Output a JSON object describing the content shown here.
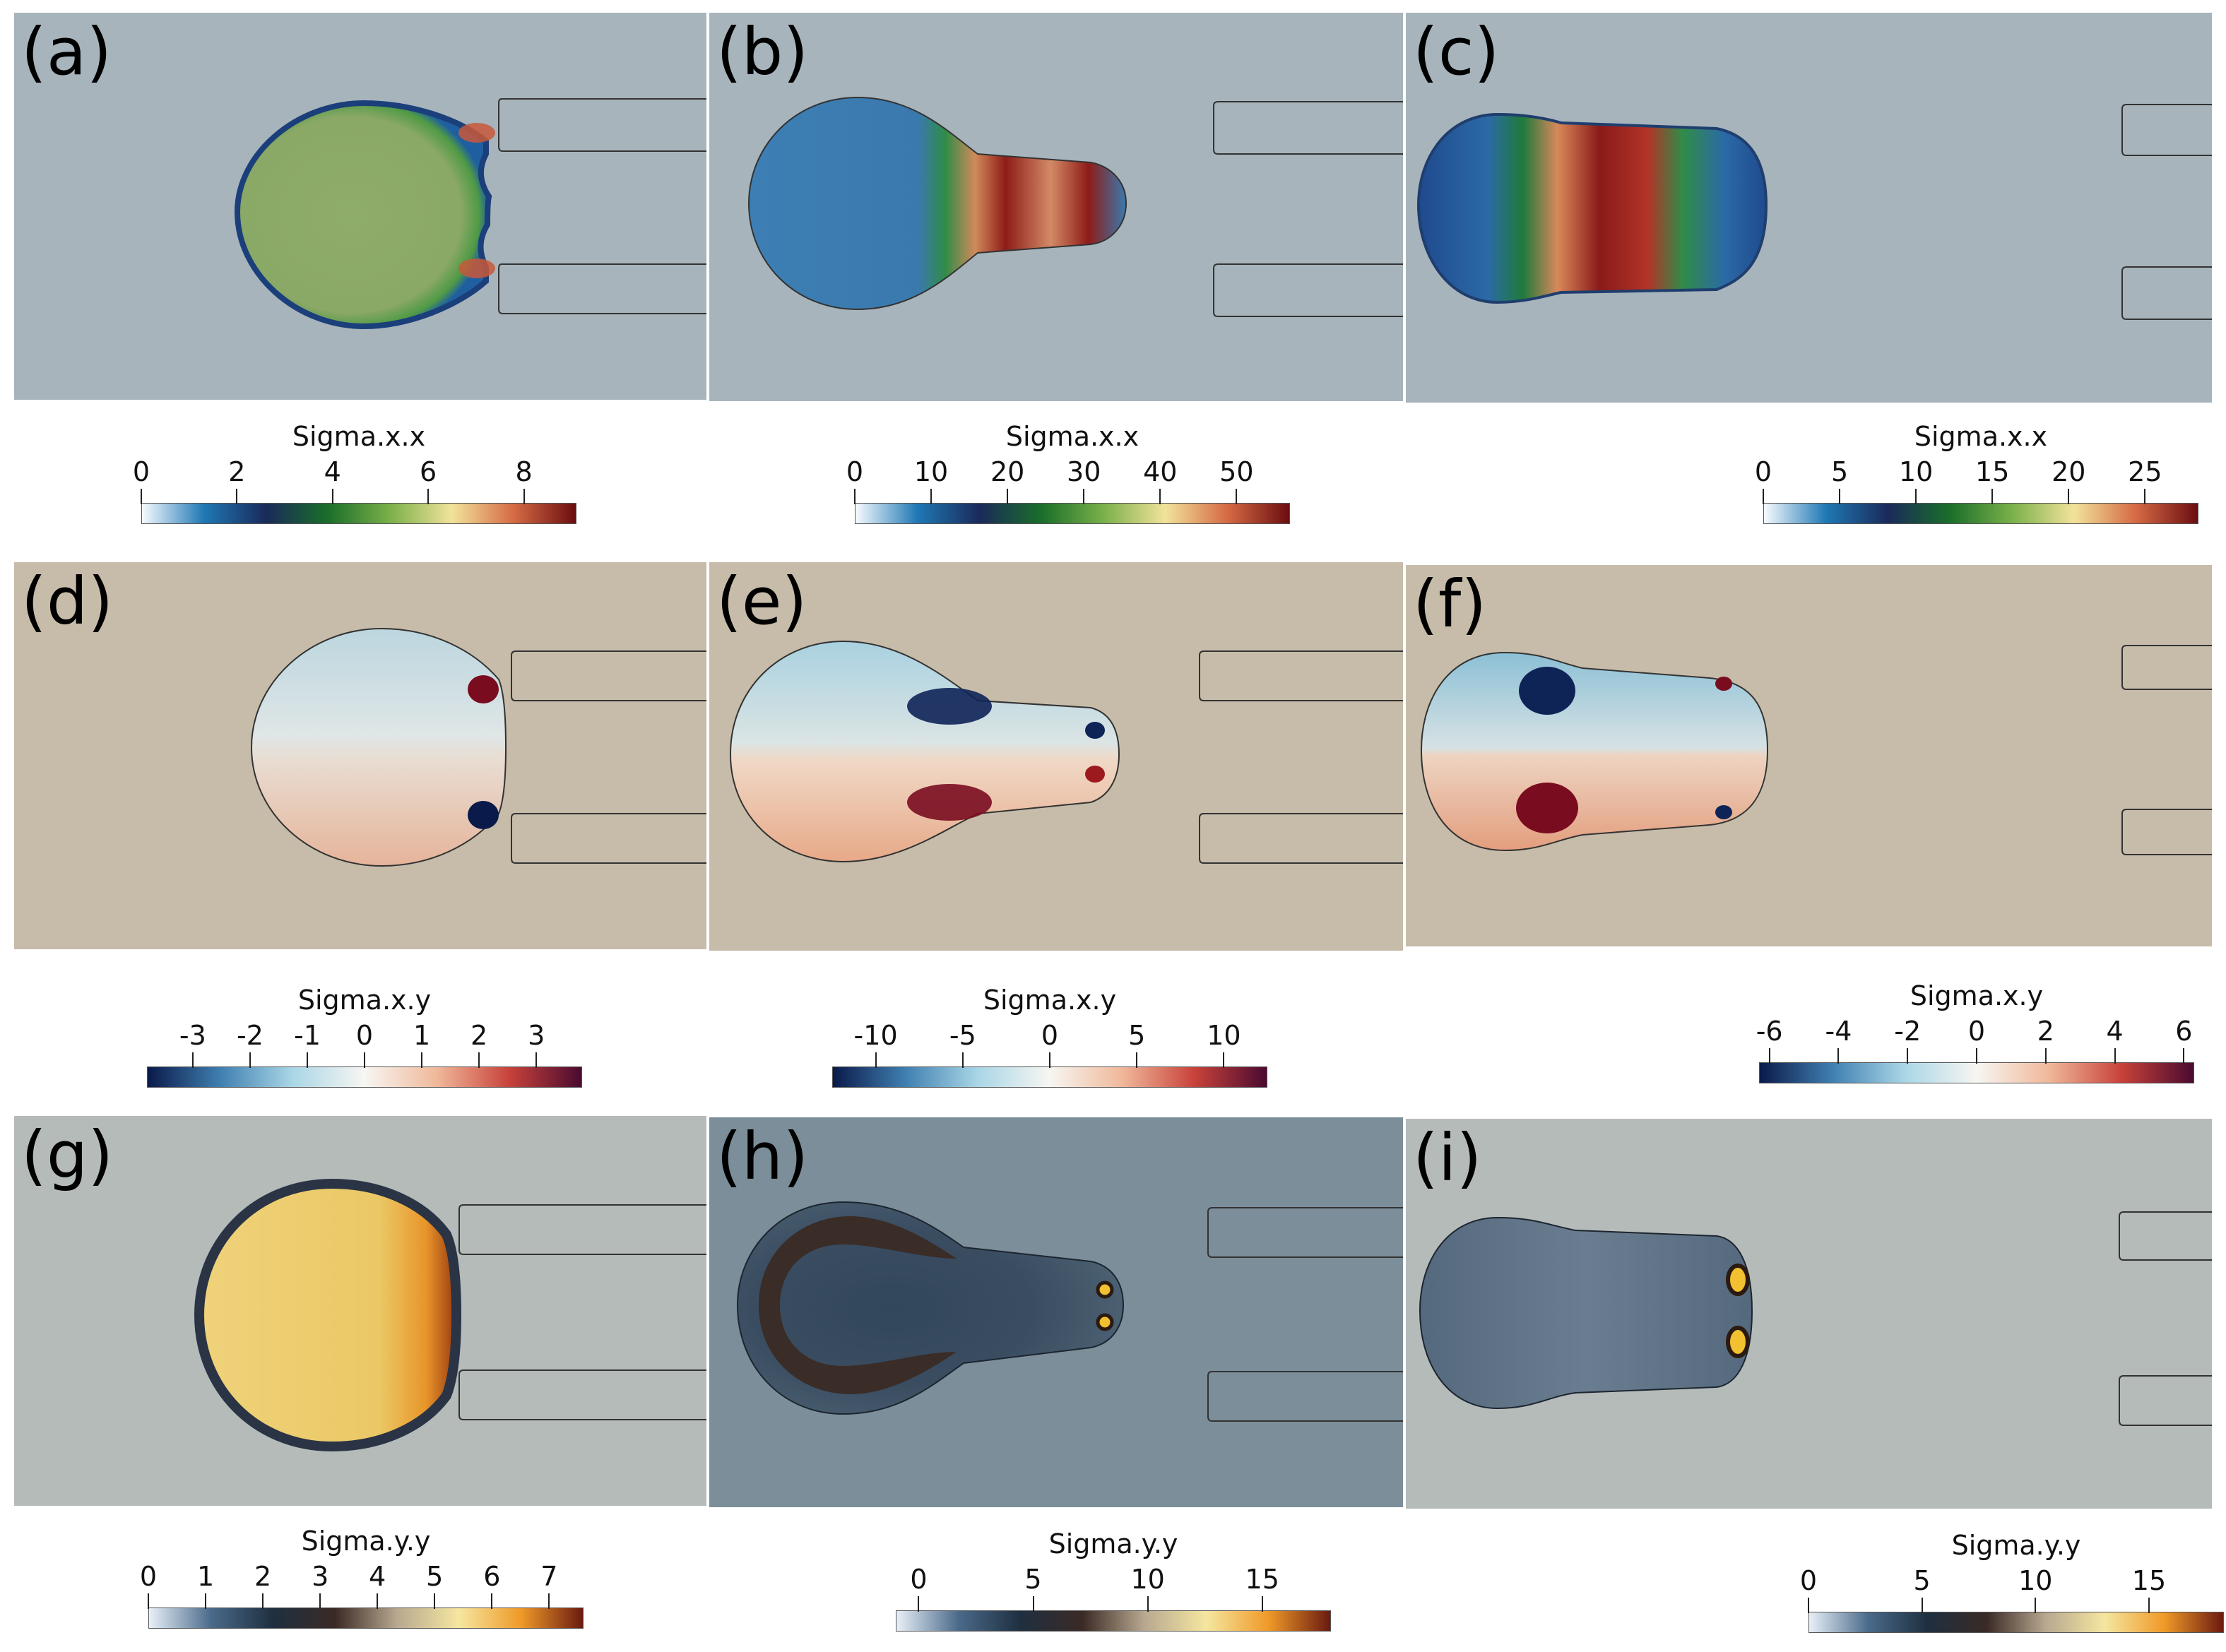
{
  "panels": [
    {
      "label": "(a)",
      "bg": "#a7b4bb"
    },
    {
      "label": "(b)",
      "bg": "#a7b4bb"
    },
    {
      "label": "(c)",
      "bg": "#a7b4bb"
    },
    {
      "label": "(d)",
      "bg": "#c6bca9"
    },
    {
      "label": "(e)",
      "bg": "#c6bca9"
    },
    {
      "label": "(f)",
      "bg": "#c6bca9"
    },
    {
      "label": "(g)",
      "bg": "#b4bbb9"
    },
    {
      "label": "(h)",
      "bg": "#7b8e9a"
    },
    {
      "label": "(i)",
      "bg": "#b4bbb9"
    }
  ],
  "chart_data": [
    {
      "type": "heatmap",
      "panel": "(a)",
      "title": "Sigma.x.x",
      "ticks": [
        "0",
        "2",
        "4",
        "6",
        "8"
      ],
      "range": [
        0,
        9.1
      ],
      "colormap": [
        "#f7fbff",
        "#1f78b4",
        "#1a2a5a",
        "#1a6e2a",
        "#7ab04a",
        "#f2e39a",
        "#d56a45",
        "#6b0d10"
      ]
    },
    {
      "type": "heatmap",
      "panel": "(b)",
      "title": "Sigma.x.x",
      "ticks": [
        "0",
        "10",
        "20",
        "30",
        "40",
        "50"
      ],
      "range": [
        0,
        57
      ],
      "colormap": [
        "#f7fbff",
        "#1f78b4",
        "#1a2a5a",
        "#1a6e2a",
        "#7ab04a",
        "#f2e39a",
        "#d56a45",
        "#6b0d10"
      ]
    },
    {
      "type": "heatmap",
      "panel": "(c)",
      "title": "Sigma.x.x",
      "ticks": [
        "0",
        "5",
        "10",
        "15",
        "20",
        "25"
      ],
      "range": [
        0,
        28.5
      ],
      "colormap": [
        "#f7fbff",
        "#1f78b4",
        "#1a2a5a",
        "#1a6e2a",
        "#7ab04a",
        "#f2e39a",
        "#d56a45",
        "#6b0d10"
      ]
    },
    {
      "type": "heatmap",
      "panel": "(d)",
      "title": "Sigma.x.y",
      "ticks": [
        "-3",
        "-2",
        "-1",
        "0",
        "1",
        "2",
        "3"
      ],
      "range": [
        -3.8,
        3.8
      ],
      "colormap": [
        "#0a1a4a",
        "#3f7fb0",
        "#a9d6e6",
        "#f7f6f2",
        "#f0b89a",
        "#c8423a",
        "#4a0a30"
      ]
    },
    {
      "type": "heatmap",
      "panel": "(e)",
      "title": "Sigma.x.y",
      "ticks": [
        "-10",
        "-5",
        "0",
        "5",
        "10"
      ],
      "range": [
        -12.5,
        12.5
      ],
      "colormap": [
        "#0a1a4a",
        "#3f7fb0",
        "#a9d6e6",
        "#f7f6f2",
        "#f0b89a",
        "#c8423a",
        "#4a0a30"
      ]
    },
    {
      "type": "heatmap",
      "panel": "(f)",
      "title": "Sigma.x.y",
      "ticks": [
        "-6",
        "-4",
        "-2",
        "0",
        "2",
        "4",
        "6"
      ],
      "range": [
        -6.3,
        6.3
      ],
      "colormap": [
        "#0a1a4a",
        "#3f7fb0",
        "#a9d6e6",
        "#f7f6f2",
        "#f0b89a",
        "#c8423a",
        "#4a0a30"
      ]
    },
    {
      "type": "heatmap",
      "panel": "(g)",
      "title": "Sigma.y.y",
      "ticks": [
        "0",
        "1",
        "2",
        "3",
        "4",
        "5",
        "6",
        "7"
      ],
      "range": [
        0,
        7.6
      ],
      "colormap": [
        "#e8f0f8",
        "#4a6a8a",
        "#1f2f40",
        "#3a2a25",
        "#b8a890",
        "#f5e6a0",
        "#ef9a28",
        "#6b1a10"
      ]
    },
    {
      "type": "heatmap",
      "panel": "(h)",
      "title": "Sigma.y.y",
      "ticks": [
        "0",
        "5",
        "10",
        "15"
      ],
      "range": [
        -1,
        18
      ],
      "colormap": [
        "#e8f0f8",
        "#4a6a8a",
        "#1f2f40",
        "#3a2a25",
        "#b8a890",
        "#f5e6a0",
        "#ef9a28",
        "#6b1a10"
      ]
    },
    {
      "type": "heatmap",
      "panel": "(i)",
      "title": "Sigma.y.y",
      "ticks": [
        "0",
        "5",
        "10",
        "15"
      ],
      "range": [
        0,
        18.3
      ],
      "colormap": [
        "#e8f0f8",
        "#4a6a8a",
        "#1f2f40",
        "#3a2a25",
        "#b8a890",
        "#f5e6a0",
        "#ef9a28",
        "#6b1a10"
      ]
    }
  ]
}
